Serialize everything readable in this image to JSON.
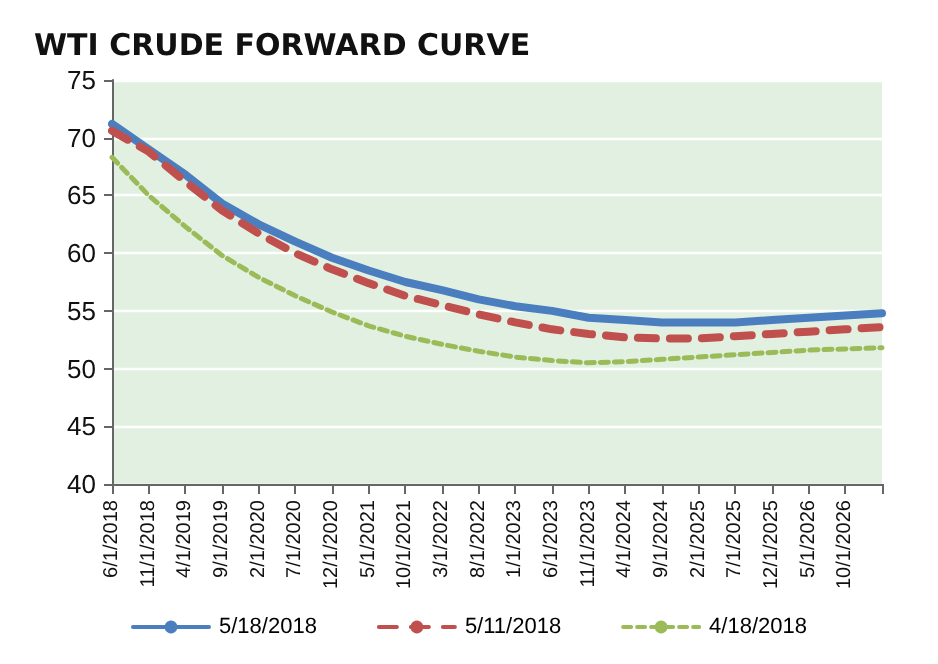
{
  "chart_data": {
    "type": "line",
    "title": "WTI CRUDE FORWARD CURVE",
    "categories": [
      "6/1/2018",
      "11/1/2018",
      "4/1/2019",
      "9/1/2019",
      "2/1/2020",
      "7/1/2020",
      "12/1/2020",
      "5/1/2021",
      "10/1/2021",
      "3/1/2022",
      "8/1/2022",
      "1/1/2023",
      "6/1/2023",
      "11/1/2023",
      "4/1/2024",
      "9/1/2024",
      "2/1/2025",
      "7/1/2025",
      "12/1/2025",
      "5/1/2026",
      "10/1/2026",
      null
    ],
    "series": [
      {
        "name": "5/18/2018",
        "color": "#4a7ebf",
        "line_style": "solid",
        "values": [
          71.2,
          69.0,
          66.8,
          64.3,
          62.5,
          61.0,
          59.6,
          58.5,
          57.5,
          56.8,
          56.0,
          55.4,
          55.0,
          54.4,
          54.2,
          54.0,
          54.0,
          54.0,
          54.2,
          54.4,
          54.6,
          54.8
        ]
      },
      {
        "name": "5/11/2018",
        "color": "#c0504d",
        "line_style": "dashed",
        "values": [
          70.6,
          68.8,
          66.2,
          63.7,
          61.7,
          60.0,
          58.6,
          57.4,
          56.3,
          55.5,
          54.7,
          54.0,
          53.4,
          53.0,
          52.7,
          52.6,
          52.6,
          52.8,
          53.0,
          53.2,
          53.4,
          53.6
        ]
      },
      {
        "name": "4/18/2018",
        "color": "#9bbb59",
        "line_style": "dotted",
        "values": [
          68.3,
          65.0,
          62.3,
          59.8,
          57.9,
          56.3,
          54.9,
          53.7,
          52.8,
          52.1,
          51.5,
          51.0,
          50.7,
          50.5,
          50.6,
          50.8,
          51.0,
          51.2,
          51.4,
          51.6,
          51.7,
          51.8
        ]
      }
    ],
    "ylim": [
      40,
      75
    ],
    "yticks": [
      40,
      45,
      50,
      55,
      60,
      65,
      70,
      75
    ],
    "grid": "y",
    "legend": "bottom",
    "marker": "none"
  }
}
